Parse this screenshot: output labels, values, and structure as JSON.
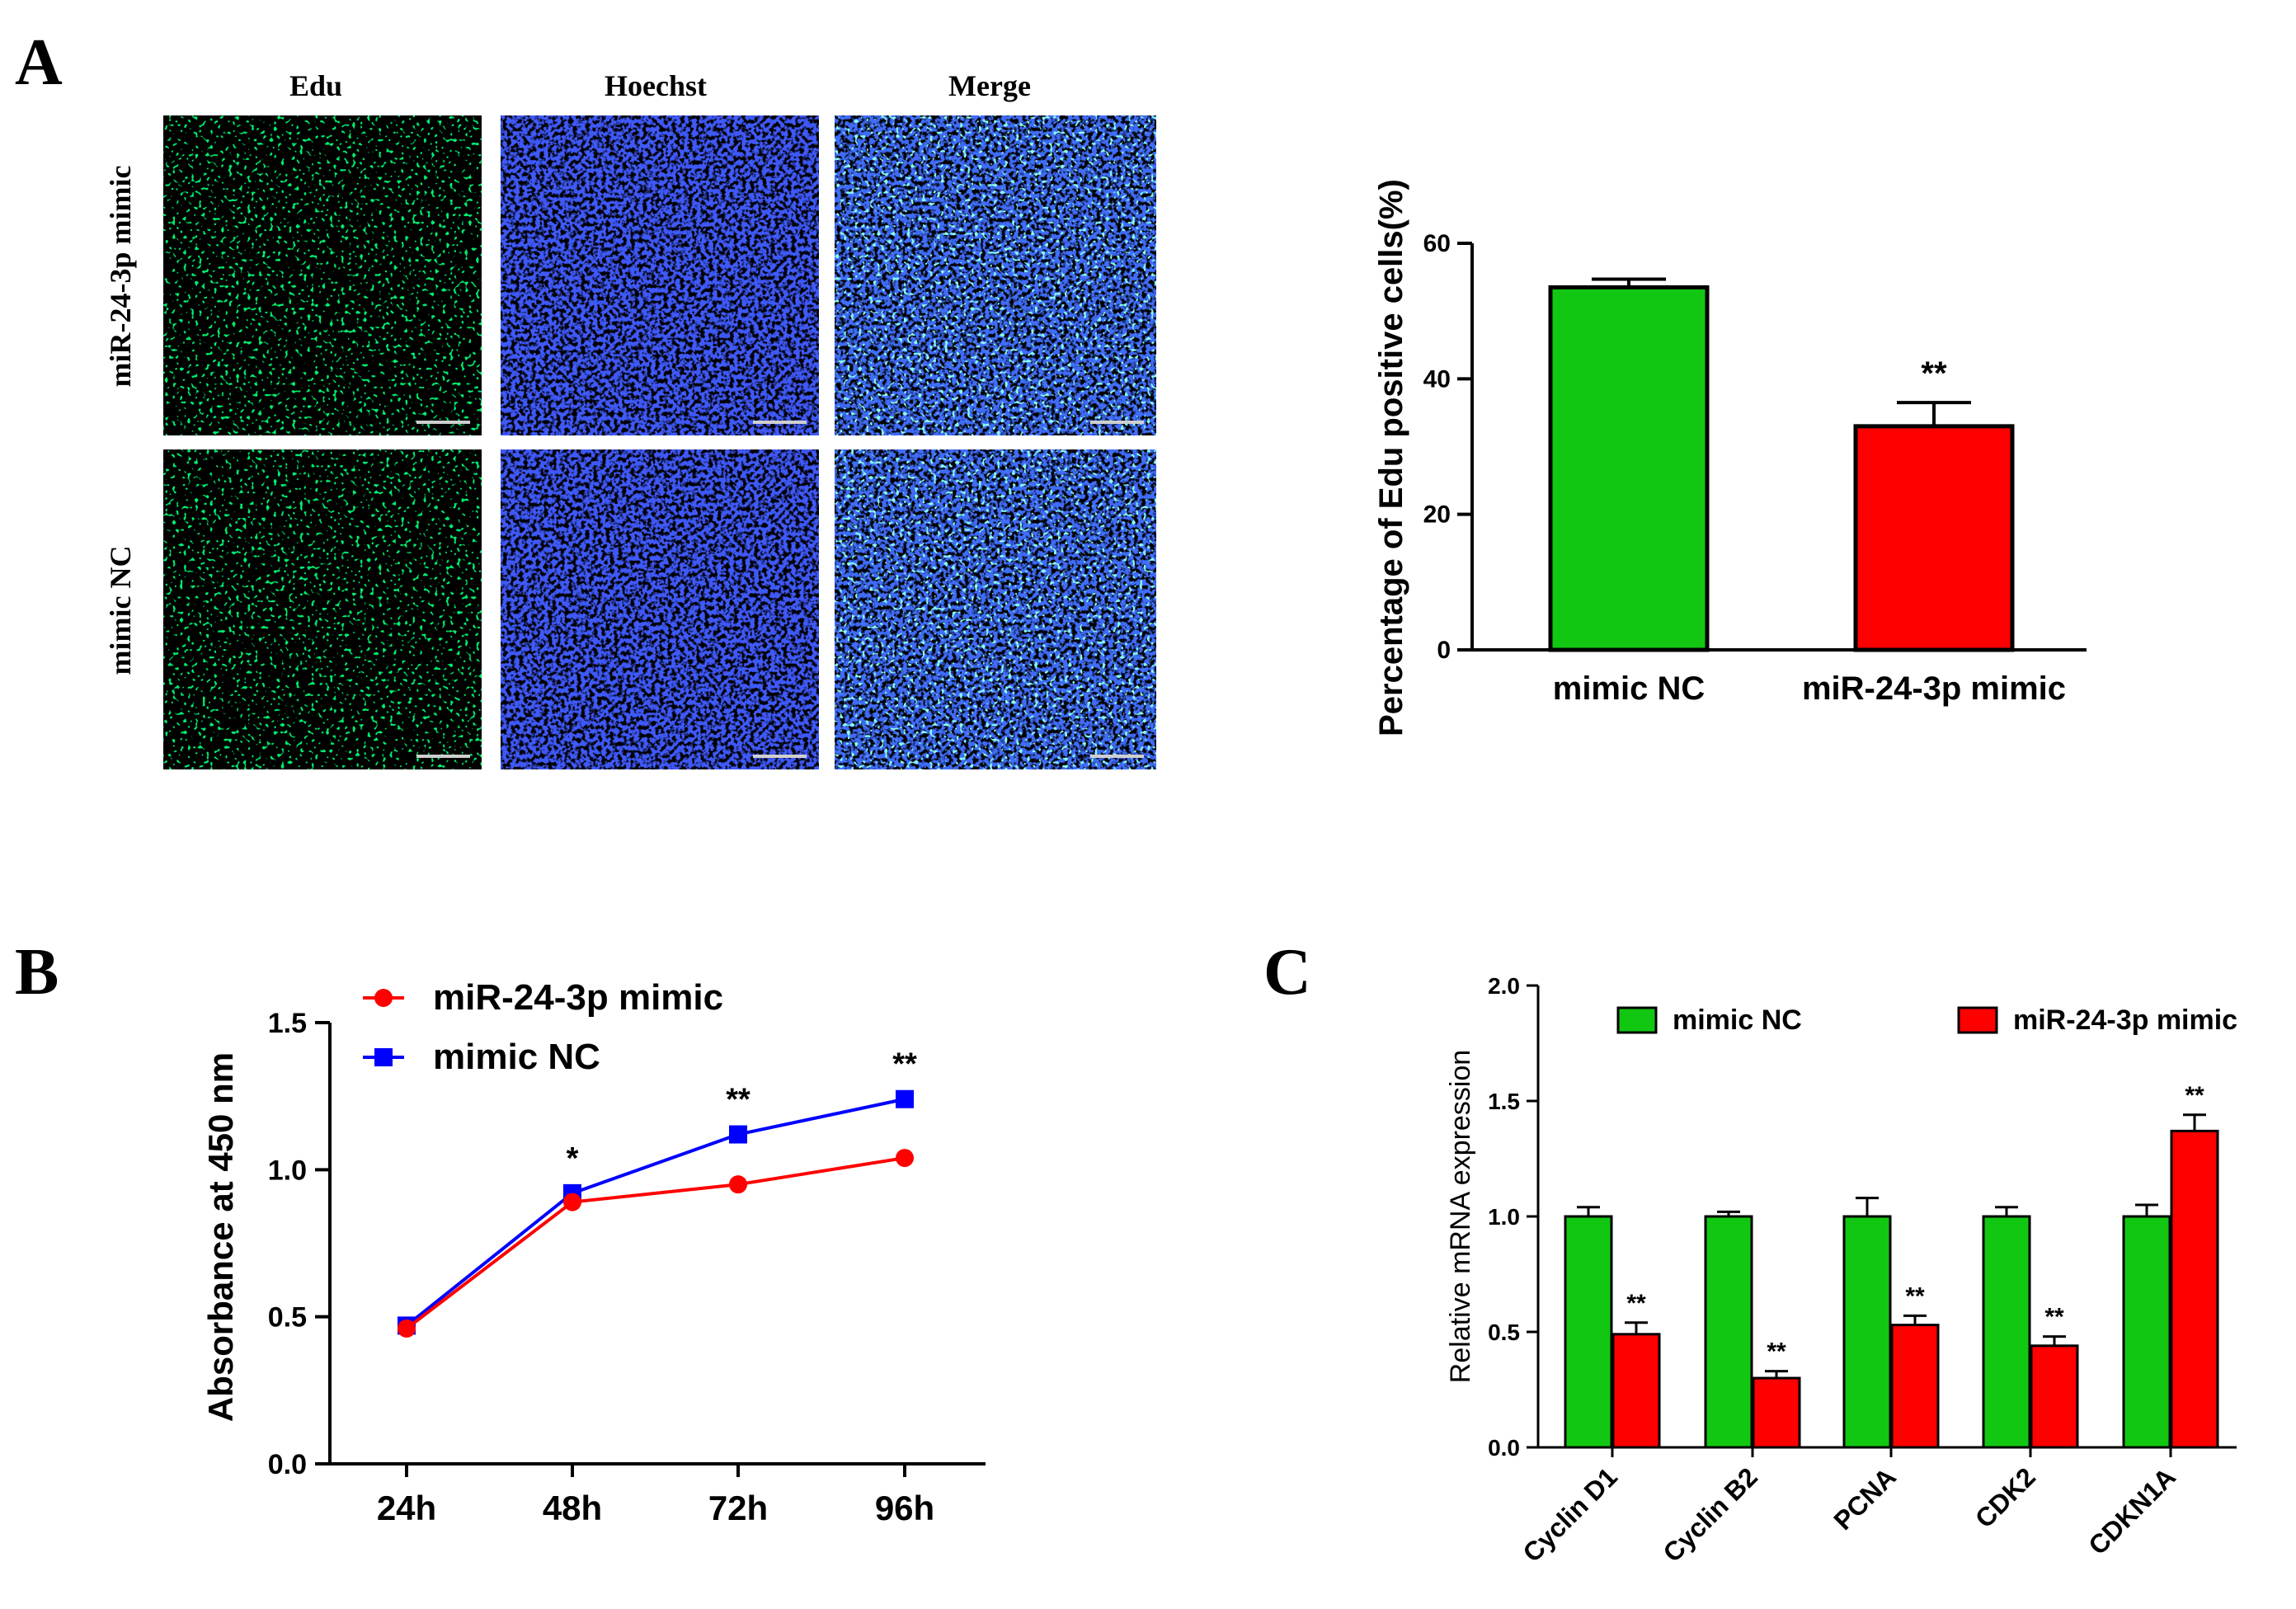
{
  "panels": {
    "a": "A",
    "b": "B",
    "c": "C"
  },
  "microscopy": {
    "columns": [
      "Edu",
      "Hoechst",
      "Merge"
    ],
    "rows": [
      "miR-24-3p mimic",
      "mimic NC"
    ]
  },
  "colors": {
    "green": "#12c712",
    "red": "#ff0000",
    "blue": "#0000ff",
    "axis": "#000000"
  },
  "chart_data": [
    {
      "id": "edu_percentage",
      "type": "bar",
      "title": "",
      "xlabel": "",
      "ylabel": "Percentage of Edu positive cells(%)",
      "categories": [
        "mimic NC",
        "miR-24-3p mimic"
      ],
      "values": [
        53.5,
        33.0
      ],
      "errors": [
        1.2,
        3.5
      ],
      "bar_colors": [
        "#12c712",
        "#ff0000"
      ],
      "significance": [
        "",
        "**"
      ],
      "ylim": [
        0,
        60
      ],
      "yticks": [
        0,
        20,
        40,
        60
      ],
      "grid": false
    },
    {
      "id": "absorbance",
      "type": "line",
      "title": "",
      "xlabel": "",
      "ylabel": "Absorbance at 450 nm",
      "categories": [
        "24h",
        "48h",
        "72h",
        "96h"
      ],
      "series": [
        {
          "name": "miR-24-3p mimic",
          "values": [
            0.46,
            0.89,
            0.95,
            1.04
          ],
          "color": "#ff0000",
          "marker": "circle"
        },
        {
          "name": "mimic NC",
          "values": [
            0.47,
            0.92,
            1.12,
            1.24
          ],
          "color": "#0000ff",
          "marker": "square"
        }
      ],
      "significance": [
        "",
        "*",
        "**",
        "**"
      ],
      "ylim": [
        0,
        1.5
      ],
      "yticks": [
        0.0,
        0.5,
        1.0,
        1.5
      ],
      "ytick_labels": [
        "0.0",
        "0.5",
        "1.0",
        "1.5"
      ],
      "legend": "top-left",
      "grid": false
    },
    {
      "id": "mrna_expression",
      "type": "bar",
      "title": "",
      "xlabel": "",
      "ylabel": "Relative mRNA expression",
      "categories": [
        "Cyclin D1",
        "Cyclin B2",
        "PCNA",
        "CDK2",
        "CDKN1A"
      ],
      "series": [
        {
          "name": "mimic NC",
          "values": [
            1.0,
            1.0,
            1.0,
            1.0,
            1.0
          ],
          "errors": [
            0.04,
            0.02,
            0.08,
            0.04,
            0.05
          ],
          "color": "#12c712"
        },
        {
          "name": "miR-24-3p mimic",
          "values": [
            0.49,
            0.3,
            0.53,
            0.44,
            1.37
          ],
          "errors": [
            0.05,
            0.03,
            0.04,
            0.04,
            0.07
          ],
          "color": "#ff0000"
        }
      ],
      "significance": [
        "**",
        "**",
        "**",
        "**",
        "**"
      ],
      "ylim": [
        0,
        2.0
      ],
      "yticks": [
        0.0,
        0.5,
        1.0,
        1.5,
        2.0
      ],
      "ytick_labels": [
        "0.0",
        "0.5",
        "1.0",
        "1.5",
        "2.0"
      ],
      "legend": "top",
      "grid": false
    }
  ]
}
